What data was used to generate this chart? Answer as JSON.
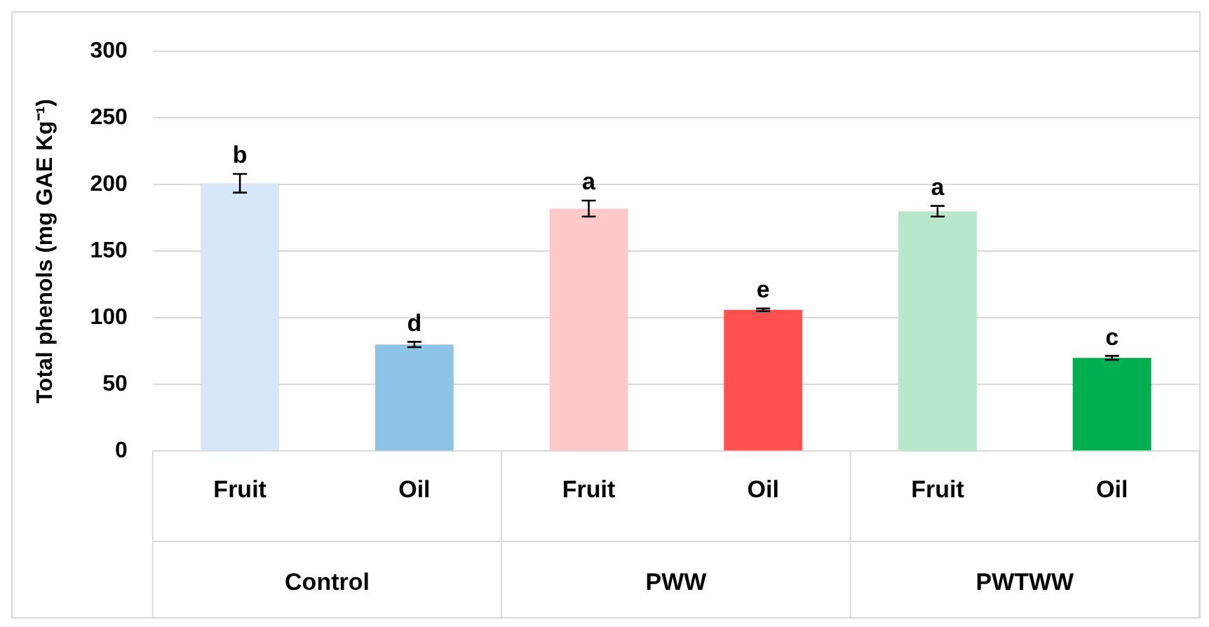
{
  "chart_data": {
    "type": "bar",
    "ylabel": "Total phenols (mg GAE Kg⁻¹)",
    "categories": [
      "Fruit",
      "Oil",
      "Fruit",
      "Oil",
      "Fruit",
      "Oil"
    ],
    "values": [
      201,
      80,
      182,
      106,
      180,
      70
    ],
    "errors": [
      7,
      2,
      6,
      1,
      4,
      1.5
    ],
    "colors": [
      "#d6e8f7",
      "#8ec3e8",
      "#ffc9c9",
      "#ff5050",
      "#b8e8cc",
      "#00b050"
    ],
    "ylim": [
      0,
      300
    ],
    "yticks": [
      0,
      50,
      100,
      150,
      200,
      250,
      300
    ],
    "grid": "y",
    "legend": false,
    "annotations": [
      "b",
      "d",
      "a",
      "e",
      "a",
      "c",
      "Control",
      "PWW",
      "PWTWW"
    ]
  }
}
